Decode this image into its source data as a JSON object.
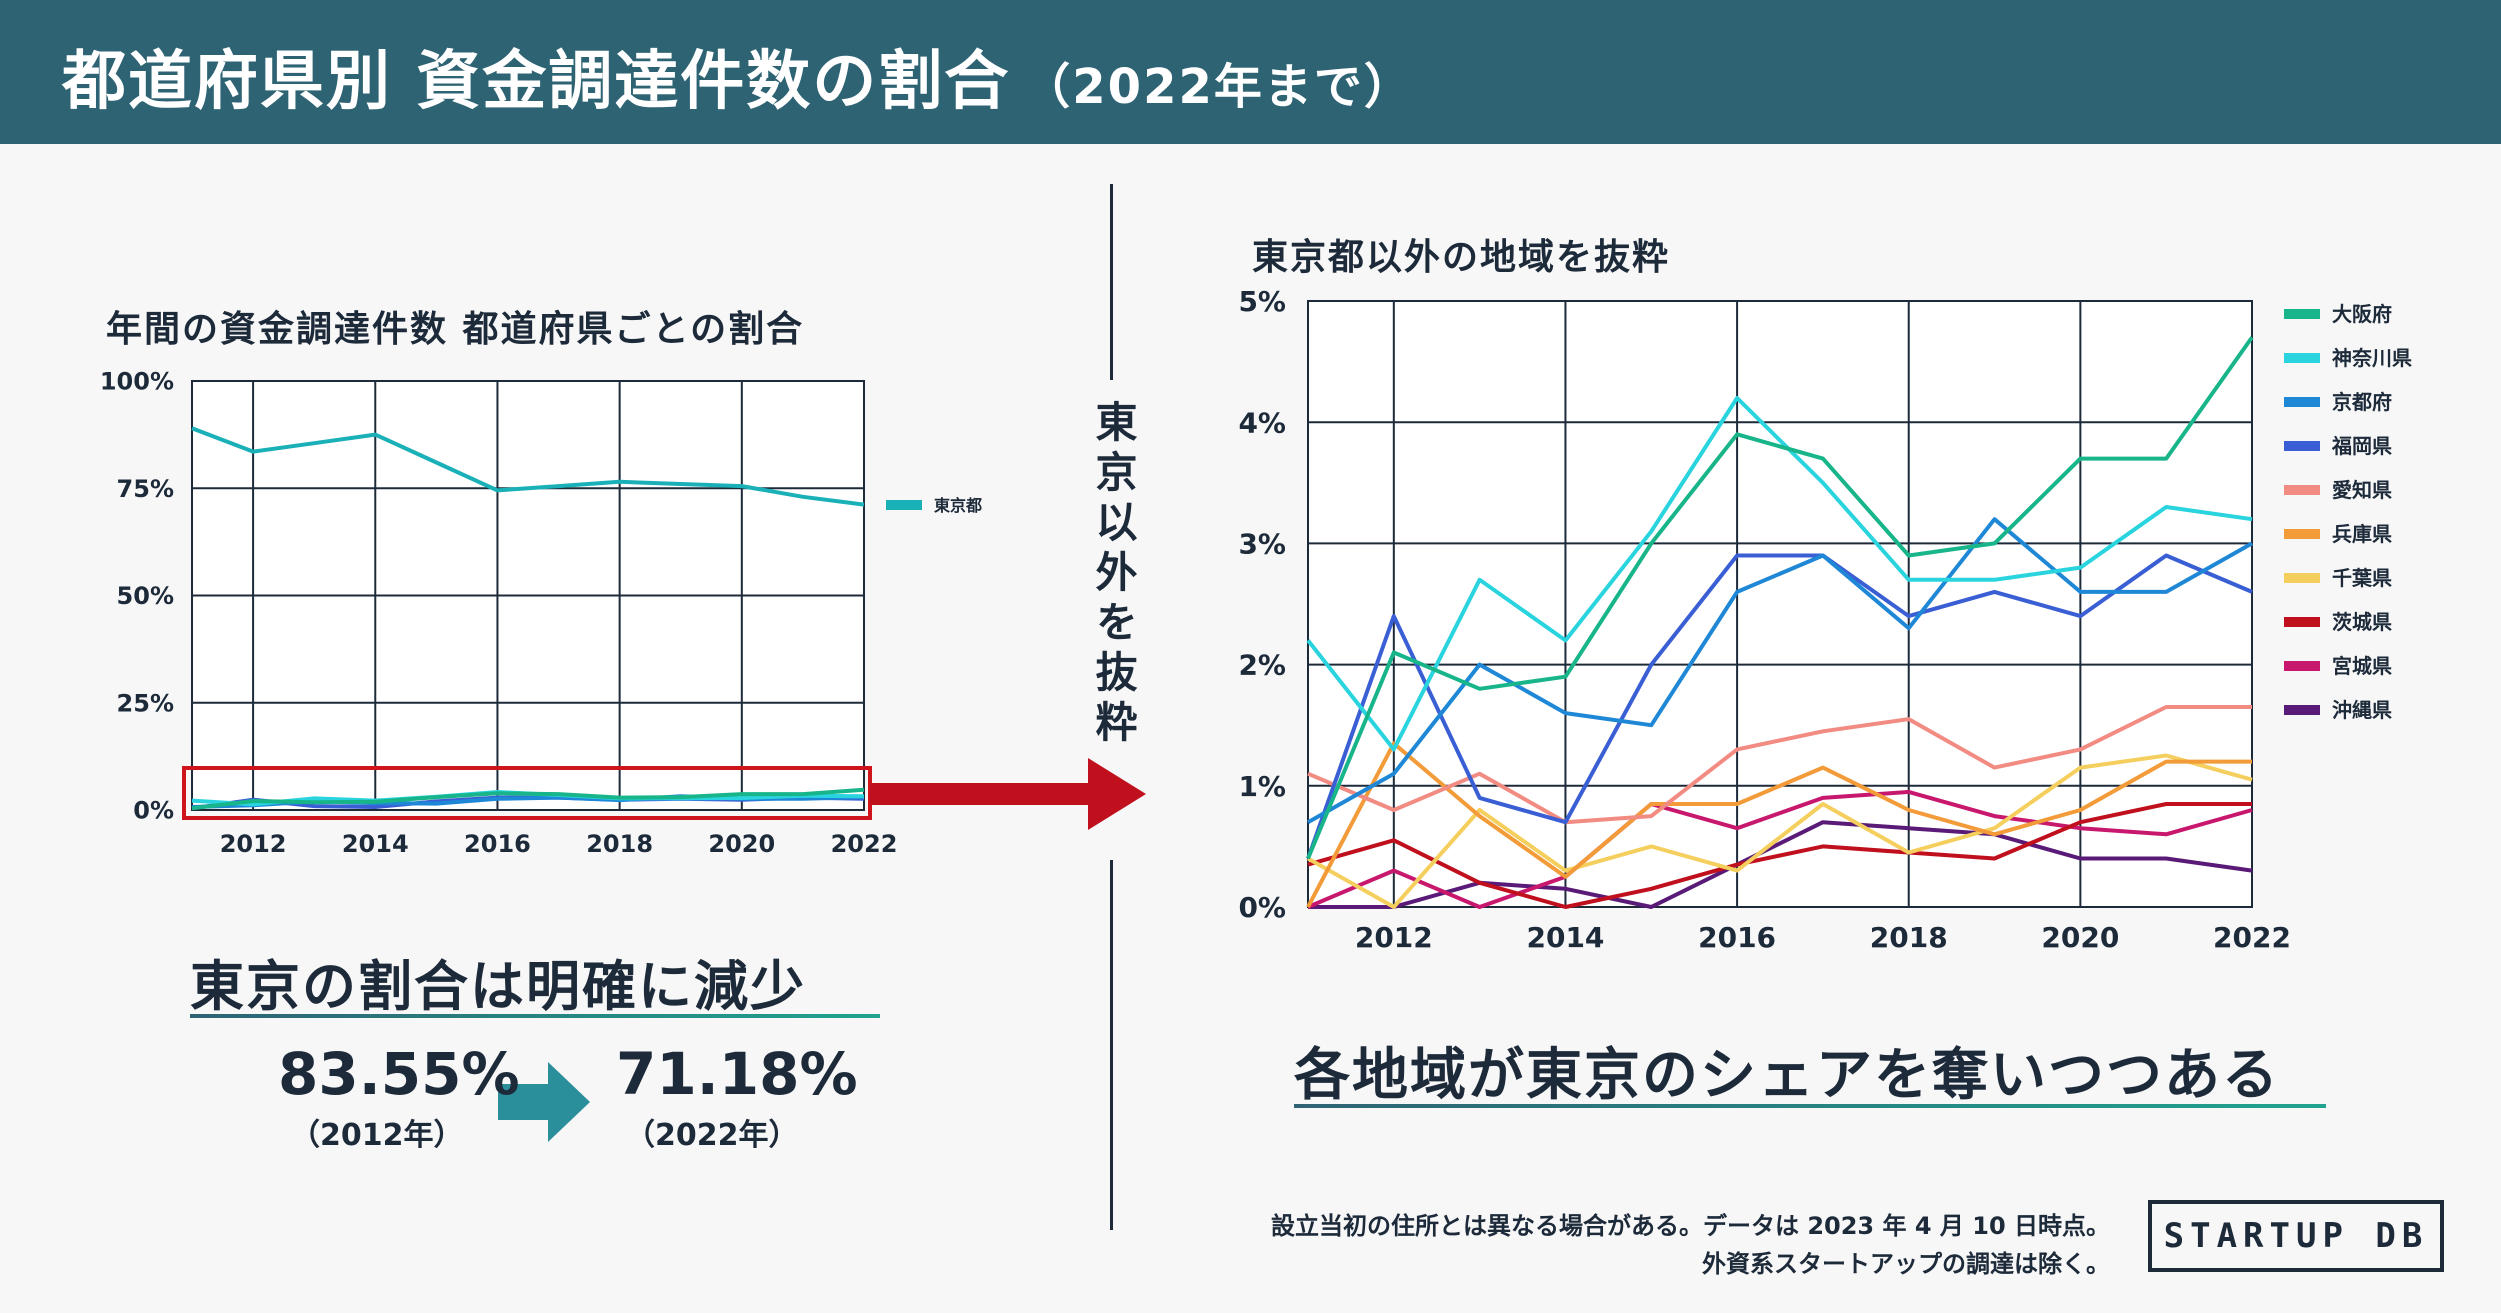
{
  "header": {
    "title": "都道府県別 資金調達件数の割合",
    "subtitle": "（2022年まで）"
  },
  "left": {
    "headline": "東京の割合は明確に減少",
    "from_value": "83.55%",
    "from_year": "（2012年）",
    "to_value": "71.18%",
    "to_year": "（2022年）"
  },
  "middle": {
    "vertical_label": "東京以外を抜粋"
  },
  "right": {
    "headline": "各地域が東京のシェアを奪いつつある"
  },
  "footer": {
    "note_line1": "設立当初の住所とは異なる場合がある。データは 2023 年 4 月 10 日時点。",
    "note_line2": "外資系スタートアップの調達は除く。",
    "logo": "STARTUP DB"
  },
  "colors": {
    "banner": "#2e6373",
    "tokyo": "#1ab0b8",
    "highlight": "#d0141c",
    "arrow": "#2a8f9a"
  },
  "chart_data": [
    {
      "type": "line",
      "title": "年間の資金調達件数 都道府県ごとの割合",
      "x": [
        2011,
        2012,
        2013,
        2014,
        2015,
        2016,
        2017,
        2018,
        2019,
        2020,
        2021,
        2022
      ],
      "xticks": [
        "2012",
        "2014",
        "2016",
        "2018",
        "2020",
        "2022"
      ],
      "yticks": [
        "100%",
        "75%",
        "50%",
        "25%",
        "0%"
      ],
      "ylim": [
        0,
        100
      ],
      "legend_position": "right",
      "series": [
        {
          "name": "東京都",
          "color": "#1ab0b8",
          "values": [
            89,
            83.55,
            85.5,
            87.5,
            81,
            74.5,
            75.5,
            76.5,
            76,
            75.5,
            73,
            71.18
          ]
        },
        {
          "name": "大阪府",
          "color": "#17b589",
          "values": [
            0.4,
            2.1,
            1.8,
            1.9,
            3,
            3.9,
            3.7,
            2.9,
            3,
            3.7,
            3.7,
            4.7
          ]
        },
        {
          "name": "神奈川県",
          "color": "#29d4de",
          "values": [
            2.2,
            1.3,
            2.7,
            2.2,
            3.1,
            4.2,
            3.5,
            2.7,
            2.7,
            2.8,
            3.3,
            3.2
          ]
        },
        {
          "name": "京都府",
          "color": "#1e88d6",
          "values": [
            0.7,
            1.1,
            2,
            1.6,
            1.5,
            2.6,
            2.9,
            2.3,
            3.2,
            2.6,
            2.6,
            3
          ]
        },
        {
          "name": "福岡県",
          "color": "#3a5fd4",
          "values": [
            0.4,
            2.4,
            0.9,
            0.7,
            2,
            2.9,
            2.9,
            2.4,
            2.6,
            2.4,
            2.9,
            2.6
          ]
        }
      ]
    },
    {
      "type": "line",
      "title": "東京都以外の地域を抜粋",
      "x": [
        2011,
        2012,
        2013,
        2014,
        2015,
        2016,
        2017,
        2018,
        2019,
        2020,
        2021,
        2022
      ],
      "xticks": [
        "2012",
        "2014",
        "2016",
        "2018",
        "2020",
        "2022"
      ],
      "yticks": [
        "5%",
        "4%",
        "3%",
        "2%",
        "1%",
        "0%"
      ],
      "ylim": [
        0,
        5
      ],
      "legend_position": "right",
      "series": [
        {
          "name": "大阪府",
          "color": "#17b589",
          "values": [
            0.4,
            2.1,
            1.8,
            1.9,
            3.0,
            3.9,
            3.7,
            2.9,
            3.0,
            3.7,
            3.7,
            4.7
          ]
        },
        {
          "name": "神奈川県",
          "color": "#29d4de",
          "values": [
            2.2,
            1.3,
            2.7,
            2.2,
            3.1,
            4.2,
            3.5,
            2.7,
            2.7,
            2.8,
            3.3,
            3.2
          ]
        },
        {
          "name": "京都府",
          "color": "#1e88d6",
          "values": [
            0.7,
            1.1,
            2.0,
            1.6,
            1.5,
            2.6,
            2.9,
            2.3,
            3.2,
            2.6,
            2.6,
            3.0
          ]
        },
        {
          "name": "福岡県",
          "color": "#3a5fd4",
          "values": [
            0.4,
            2.4,
            0.9,
            0.7,
            2.0,
            2.9,
            2.9,
            2.4,
            2.6,
            2.4,
            2.9,
            2.6
          ]
        },
        {
          "name": "愛知県",
          "color": "#f28b82",
          "values": [
            1.1,
            0.8,
            1.1,
            0.7,
            0.75,
            1.3,
            1.45,
            1.55,
            1.15,
            1.3,
            1.65,
            1.65
          ]
        },
        {
          "name": "兵庫県",
          "color": "#f29b38",
          "values": [
            0.0,
            1.35,
            0.75,
            0.25,
            0.85,
            0.85,
            1.15,
            0.8,
            0.6,
            0.8,
            1.2,
            1.2
          ]
        },
        {
          "name": "千葉県",
          "color": "#f5cf5e",
          "values": [
            0.4,
            0.0,
            0.8,
            0.3,
            0.5,
            0.3,
            0.85,
            0.45,
            0.65,
            1.15,
            1.25,
            1.05
          ]
        },
        {
          "name": "茨城県",
          "color": "#c0101e",
          "values": [
            0.35,
            0.55,
            0.2,
            0.0,
            0.15,
            0.35,
            0.5,
            0.45,
            0.4,
            0.7,
            0.85,
            0.85
          ]
        },
        {
          "name": "宮城県",
          "color": "#c8186e",
          "values": [
            0.0,
            0.3,
            0.0,
            0.25,
            0.85,
            0.65,
            0.9,
            0.95,
            0.75,
            0.65,
            0.6,
            0.8
          ]
        },
        {
          "name": "沖縄県",
          "color": "#5a1a78",
          "values": [
            0.0,
            0.0,
            0.2,
            0.15,
            0.0,
            0.35,
            0.7,
            0.65,
            0.6,
            0.4,
            0.4,
            0.3
          ]
        }
      ]
    }
  ]
}
